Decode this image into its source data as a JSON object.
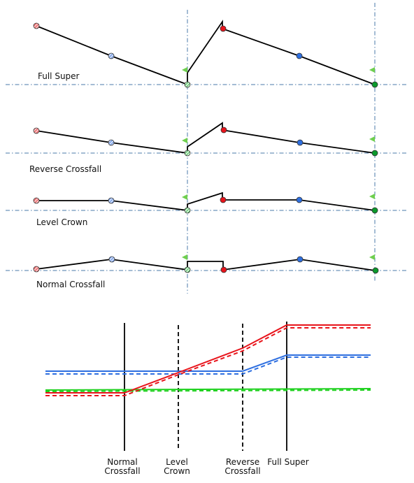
{
  "colors": {
    "red": "#e8141b",
    "blue": "#2e6fe0",
    "green": "#1fd11f",
    "dark_green": "#0c9a2c",
    "light_green": "#6fcf4f",
    "axis": "#4a78a8",
    "line": "#000000"
  },
  "sections": [
    {
      "id": "full-super",
      "label": "Full Super"
    },
    {
      "id": "reverse-crossfall",
      "label": "Reverse Crossfall"
    },
    {
      "id": "level-crown",
      "label": "Level Crown"
    },
    {
      "id": "normal-crossfall",
      "label": "Normal Crossfall"
    }
  ],
  "bottom_chart": {
    "markers": [
      {
        "name": "normal-crossfall",
        "line1": "Normal",
        "line2": "Crossfall",
        "style": "solid"
      },
      {
        "name": "level-crown",
        "line1": "Level",
        "line2": "Crown",
        "style": "dashed"
      },
      {
        "name": "reverse-crossfall",
        "line1": "Reverse",
        "line2": "Crossfall",
        "style": "dashed"
      },
      {
        "name": "full-super",
        "line1": "Full Super",
        "line2": "",
        "style": "solid"
      }
    ],
    "series": [
      {
        "color": "red"
      },
      {
        "color": "blue"
      },
      {
        "color": "green"
      }
    ]
  }
}
